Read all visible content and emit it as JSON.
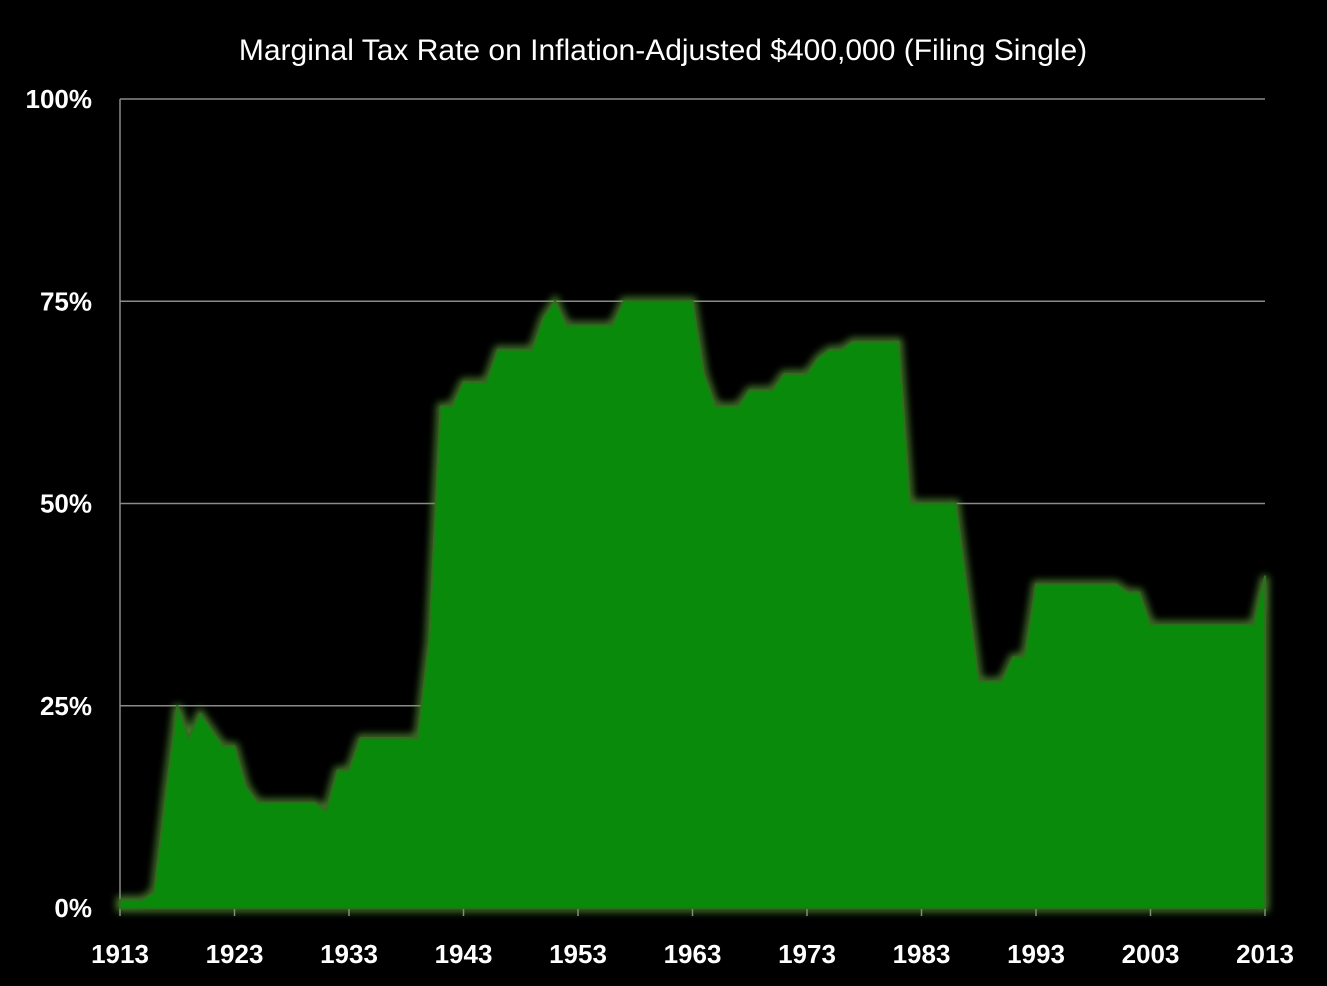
{
  "chart_data": {
    "type": "area",
    "title": "Marginal Tax Rate on Inflation-Adjusted $400,000 (Filing Single)",
    "xlabel": "",
    "ylabel": "",
    "xlim": [
      1913,
      2013
    ],
    "ylim": [
      0,
      100
    ],
    "x_ticks": [
      "1913",
      "1923",
      "1933",
      "1943",
      "1953",
      "1963",
      "1973",
      "1983",
      "1993",
      "2003",
      "2013"
    ],
    "y_ticks": [
      "0%",
      "25%",
      "50%",
      "75%",
      "100%"
    ],
    "grid": "horizontal",
    "legend": "none",
    "colors": {
      "fill": "#0a8a0a",
      "edge": "#5aa03a",
      "background": "#000000",
      "grid": "#8a8a8a",
      "text": "#ffffff"
    },
    "series": [
      {
        "x": [
          1913,
          1915,
          1916,
          1917,
          1918,
          1919,
          1920,
          1921,
          1922,
          1923,
          1924,
          1925,
          1926,
          1927,
          1928,
          1929,
          1930,
          1931,
          1932,
          1933,
          1934,
          1935,
          1936,
          1937,
          1938,
          1939,
          1940,
          1941,
          1942,
          1943,
          1944,
          1945,
          1946,
          1947,
          1948,
          1949,
          1950,
          1951,
          1952,
          1953,
          1954,
          1955,
          1956,
          1957,
          1958,
          1959,
          1960,
          1961,
          1962,
          1963,
          1964,
          1965,
          1966,
          1967,
          1968,
          1969,
          1970,
          1971,
          1972,
          1973,
          1974,
          1975,
          1976,
          1977,
          1978,
          1979,
          1980,
          1981,
          1982,
          1983,
          1984,
          1985,
          1986,
          1987,
          1988,
          1989,
          1990,
          1991,
          1992,
          1993,
          1994,
          1995,
          1996,
          1997,
          1998,
          1999,
          2000,
          2001,
          2002,
          2003,
          2004,
          2005,
          2006,
          2007,
          2008,
          2009,
          2010,
          2011,
          2012,
          2013
        ],
        "y": [
          1,
          1,
          2,
          14,
          25,
          21,
          24,
          22,
          20,
          20,
          15,
          13,
          13,
          13,
          13,
          13,
          13,
          12,
          17,
          17,
          21,
          21,
          21,
          21,
          21,
          21,
          33,
          62,
          62,
          65,
          65,
          65,
          69,
          69,
          69,
          69,
          73,
          75,
          72,
          72,
          72,
          72,
          72,
          75,
          75,
          75,
          75,
          75,
          75,
          75,
          66,
          62,
          62,
          62,
          64,
          64,
          64,
          66,
          66,
          66,
          68,
          69,
          69,
          70,
          70,
          70,
          70,
          70,
          50,
          50,
          50,
          50,
          50,
          39,
          28,
          28,
          28,
          31,
          31,
          40,
          40,
          40,
          40,
          40,
          40,
          40,
          40,
          39,
          39,
          35,
          35,
          35,
          35,
          35,
          35,
          35,
          35,
          35,
          35,
          41
        ]
      }
    ]
  }
}
